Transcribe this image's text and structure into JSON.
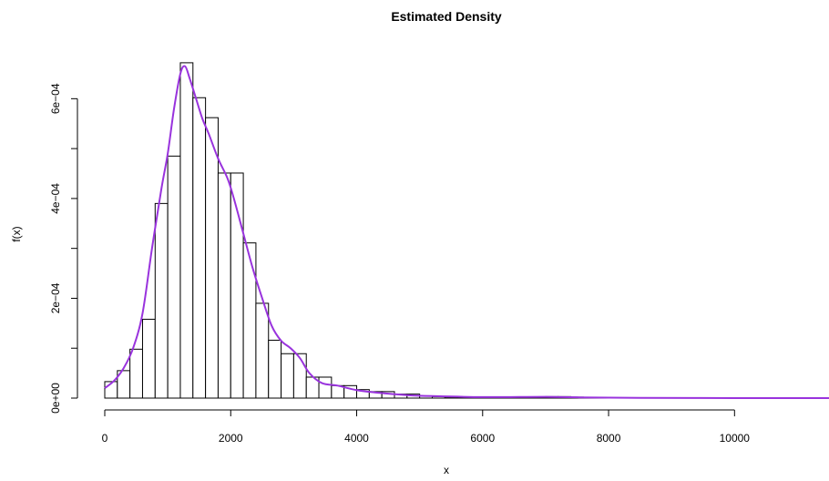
{
  "chart_data": {
    "type": "histogram",
    "title": "Estimated Density",
    "xlabel": "x",
    "ylabel": "f(x)",
    "xlim": [
      0,
      11500
    ],
    "ylim": [
      0,
      0.00067
    ],
    "x_ticks": [
      0,
      2000,
      4000,
      6000,
      8000,
      10000
    ],
    "x_tick_labels": [
      "0",
      "2000",
      "4000",
      "6000",
      "8000",
      "10000"
    ],
    "y_ticks": [
      0,
      0.0002,
      0.0004,
      0.0006
    ],
    "y_tick_labels": [
      "0e+00",
      "2e−04",
      "4e−04",
      "6e−04"
    ],
    "grid": false,
    "bin_width": 200,
    "bins": [
      {
        "start": 0,
        "end": 200,
        "density": 3.3e-05
      },
      {
        "start": 200,
        "end": 400,
        "density": 5.5e-05
      },
      {
        "start": 400,
        "end": 600,
        "density": 9.8e-05
      },
      {
        "start": 600,
        "end": 800,
        "density": 0.000158
      },
      {
        "start": 800,
        "end": 1000,
        "density": 0.00039
      },
      {
        "start": 1000,
        "end": 1200,
        "density": 0.000485
      },
      {
        "start": 1200,
        "end": 1400,
        "density": 0.000672
      },
      {
        "start": 1400,
        "end": 1600,
        "density": 0.000602
      },
      {
        "start": 1600,
        "end": 1800,
        "density": 0.000562
      },
      {
        "start": 1800,
        "end": 2000,
        "density": 0.000451
      },
      {
        "start": 2000,
        "end": 2200,
        "density": 0.000451
      },
      {
        "start": 2200,
        "end": 2400,
        "density": 0.000311
      },
      {
        "start": 2400,
        "end": 2600,
        "density": 0.00019
      },
      {
        "start": 2600,
        "end": 2800,
        "density": 0.000116
      },
      {
        "start": 2800,
        "end": 3000,
        "density": 8.9e-05
      },
      {
        "start": 3000,
        "end": 3200,
        "density": 8.9e-05
      },
      {
        "start": 3200,
        "end": 3400,
        "density": 4.2e-05
      },
      {
        "start": 3400,
        "end": 3600,
        "density": 4.2e-05
      },
      {
        "start": 3600,
        "end": 3800,
        "density": 2.5e-05
      },
      {
        "start": 3800,
        "end": 4000,
        "density": 2.5e-05
      },
      {
        "start": 4000,
        "end": 4200,
        "density": 1.7e-05
      },
      {
        "start": 4200,
        "end": 4400,
        "density": 1.3e-05
      },
      {
        "start": 4400,
        "end": 4600,
        "density": 1.3e-05
      },
      {
        "start": 4600,
        "end": 4800,
        "density": 8e-06
      },
      {
        "start": 4800,
        "end": 5000,
        "density": 8e-06
      },
      {
        "start": 5000,
        "end": 5200,
        "density": 4e-06
      },
      {
        "start": 5200,
        "end": 5400,
        "density": 3e-06
      },
      {
        "start": 5400,
        "end": 5600,
        "density": 2e-06
      },
      {
        "start": 5600,
        "end": 5800,
        "density": 2e-06
      },
      {
        "start": 5800,
        "end": 6000,
        "density": 2e-06
      },
      {
        "start": 6000,
        "end": 6200,
        "density": 2e-06
      },
      {
        "start": 6200,
        "end": 6400,
        "density": 1e-06
      },
      {
        "start": 6400,
        "end": 6600,
        "density": 1e-06
      },
      {
        "start": 6600,
        "end": 6800,
        "density": 2e-06
      },
      {
        "start": 6800,
        "end": 7000,
        "density": 2e-06
      },
      {
        "start": 7000,
        "end": 7200,
        "density": 3e-06
      },
      {
        "start": 7200,
        "end": 7400,
        "density": 3e-06
      },
      {
        "start": 7400,
        "end": 7600,
        "density": 2e-06
      },
      {
        "start": 7600,
        "end": 7800,
        "density": 1e-06
      },
      {
        "start": 7800,
        "end": 8000,
        "density": 1e-06
      }
    ],
    "density_curve": {
      "color": "#9933dd",
      "points": [
        [
          0,
          2e-05
        ],
        [
          150,
          3.5e-05
        ],
        [
          300,
          6e-05
        ],
        [
          450,
          0.0001
        ],
        [
          600,
          0.00017
        ],
        [
          750,
          0.0003
        ],
        [
          900,
          0.00042
        ],
        [
          1000,
          0.00049
        ],
        [
          1100,
          0.00058
        ],
        [
          1200,
          0.00065
        ],
        [
          1275,
          0.000665
        ],
        [
          1350,
          0.00064
        ],
        [
          1450,
          0.0006
        ],
        [
          1550,
          0.00056
        ],
        [
          1650,
          0.00053
        ],
        [
          1800,
          0.00048
        ],
        [
          1950,
          0.00044
        ],
        [
          2050,
          0.0004
        ],
        [
          2200,
          0.00033
        ],
        [
          2350,
          0.00026
        ],
        [
          2500,
          0.0002
        ],
        [
          2650,
          0.000145
        ],
        [
          2800,
          0.000115
        ],
        [
          2950,
          0.0001
        ],
        [
          3100,
          8e-05
        ],
        [
          3250,
          5e-05
        ],
        [
          3450,
          3e-05
        ],
        [
          3700,
          2.5e-05
        ],
        [
          4000,
          1.6e-05
        ],
        [
          4400,
          1e-05
        ],
        [
          4800,
          6e-06
        ],
        [
          5200,
          4e-06
        ],
        [
          6000,
          2e-06
        ],
        [
          7000,
          2.5e-06
        ],
        [
          7500,
          1.5e-06
        ],
        [
          8500,
          5e-07
        ],
        [
          10000,
          1e-07
        ],
        [
          11500,
          0
        ]
      ]
    }
  }
}
